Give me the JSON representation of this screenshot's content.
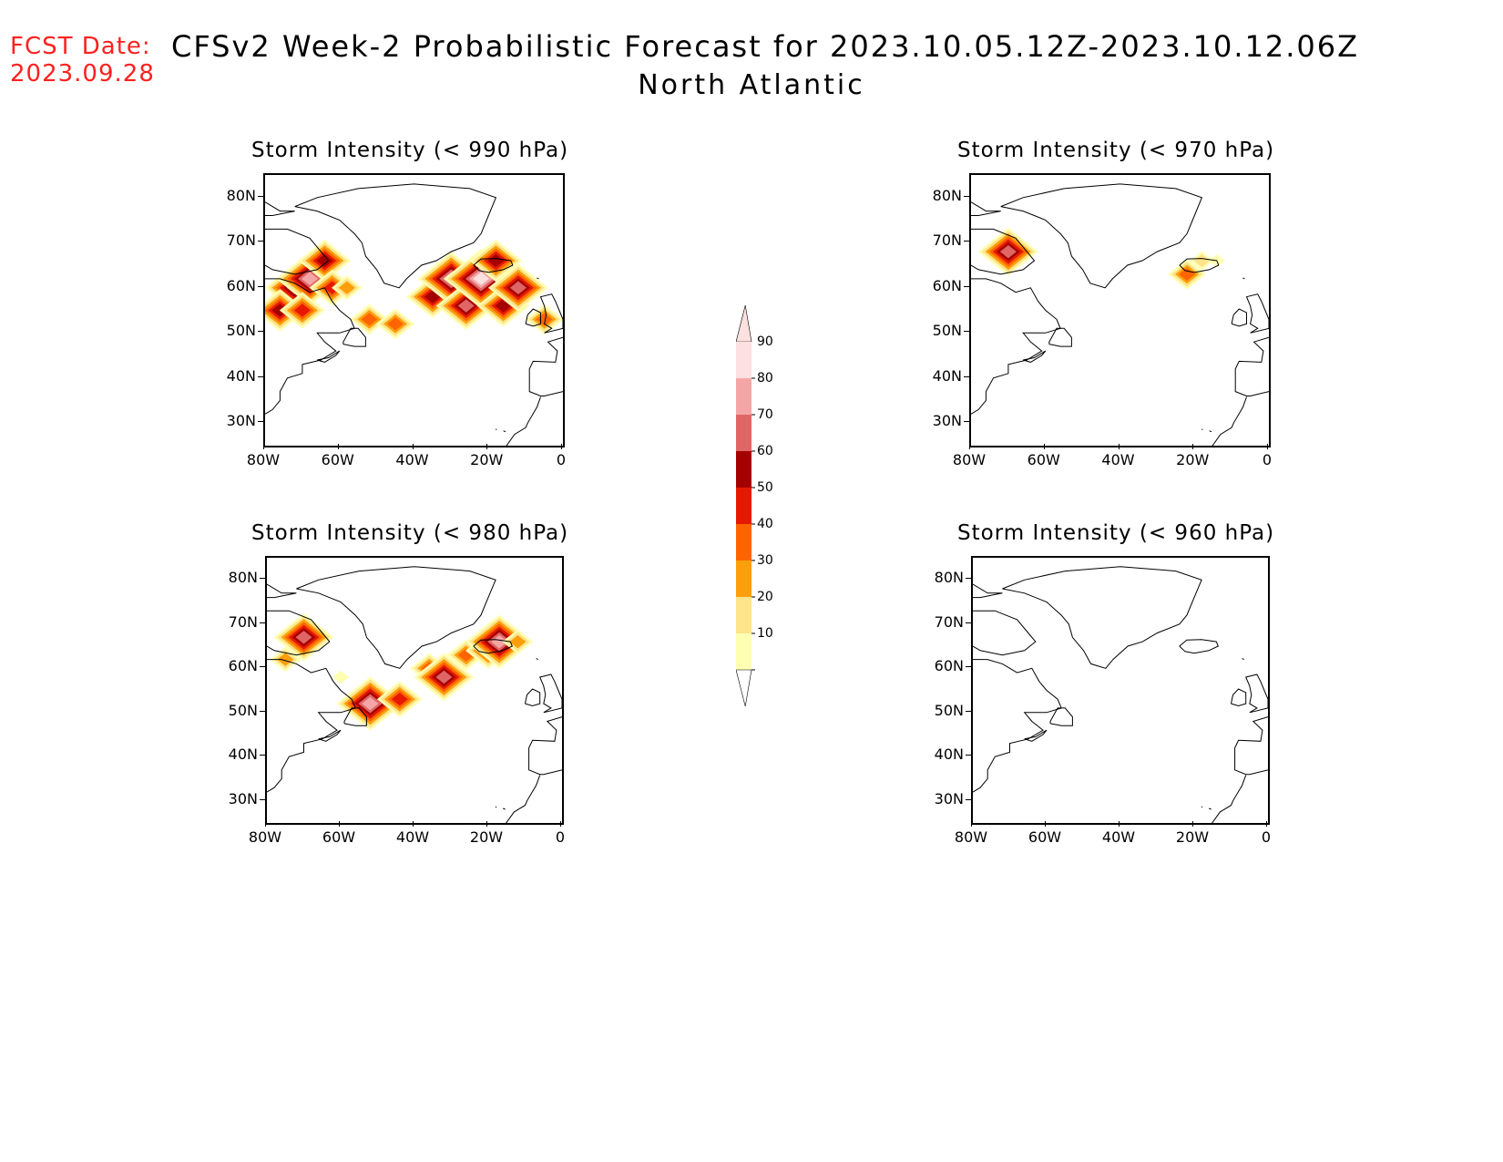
{
  "header": {
    "fcst_label": "FCST Date:",
    "fcst_date": "2023.09.28",
    "title": "CFSv2 Week-2 Probabilistic Forecast for 2023.10.05.12Z-2023.10.12.06Z",
    "subtitle": "North Atlantic"
  },
  "axes": {
    "lat_labels": [
      "80N",
      "70N",
      "60N",
      "50N",
      "40N",
      "30N"
    ],
    "lat_values": [
      80,
      70,
      60,
      50,
      40,
      30
    ],
    "lon_labels": [
      "80W",
      "60W",
      "40W",
      "20W",
      "0"
    ],
    "lon_values": [
      -80,
      -60,
      -40,
      -20,
      0
    ],
    "lat_range": [
      25,
      85
    ],
    "lon_range": [
      -80,
      0
    ]
  },
  "colorbar": {
    "levels": [
      10,
      20,
      30,
      40,
      50,
      60,
      70,
      80,
      90
    ],
    "labels": [
      "90",
      "80",
      "70",
      "60",
      "50",
      "40",
      "30",
      "20",
      "10"
    ],
    "colors": [
      "#ffffb2",
      "#fde38a",
      "#fd9f0a",
      "#ff6400",
      "#e61900",
      "#a50000",
      "#e06666",
      "#f4a6a6",
      "#fde0e0"
    ]
  },
  "panels": [
    {
      "title": "Storm Intensity (< 990 hPa)",
      "id": "p990",
      "blobs": [
        {
          "lon": -72,
          "lat": 60,
          "prob": 70
        },
        {
          "lon": -68,
          "lat": 62,
          "prob": 85
        },
        {
          "lon": -64,
          "lat": 66,
          "prob": 60
        },
        {
          "lon": -62,
          "lat": 60,
          "prob": 55
        },
        {
          "lon": -76,
          "lat": 55,
          "prob": 60
        },
        {
          "lon": -70,
          "lat": 55,
          "prob": 50
        },
        {
          "lon": -58,
          "lat": 60,
          "prob": 35
        },
        {
          "lon": -52,
          "lat": 53,
          "prob": 40
        },
        {
          "lon": -45,
          "lat": 52,
          "prob": 40
        },
        {
          "lon": -35,
          "lat": 58,
          "prob": 60
        },
        {
          "lon": -30,
          "lat": 62,
          "prob": 85
        },
        {
          "lon": -26,
          "lat": 56,
          "prob": 70
        },
        {
          "lon": -22,
          "lat": 62,
          "prob": 90
        },
        {
          "lon": -18,
          "lat": 66,
          "prob": 65
        },
        {
          "lon": -16,
          "lat": 56,
          "prob": 60
        },
        {
          "lon": -12,
          "lat": 60,
          "prob": 75
        },
        {
          "lon": -5,
          "lat": 53,
          "prob": 45
        }
      ]
    },
    {
      "title": "Storm Intensity (< 970 hPa)",
      "id": "p970",
      "blobs": [
        {
          "lon": -70,
          "lat": 68,
          "prob": 75
        },
        {
          "lon": -22,
          "lat": 63,
          "prob": 45
        },
        {
          "lon": -18,
          "lat": 66,
          "prob": 20
        },
        {
          "lon": -14,
          "lat": 66,
          "prob": 15
        }
      ]
    },
    {
      "title": "Storm Intensity (< 980 hPa)",
      "id": "p980",
      "blobs": [
        {
          "lon": -70,
          "lat": 67,
          "prob": 70
        },
        {
          "lon": -75,
          "lat": 62,
          "prob": 30
        },
        {
          "lon": -60,
          "lat": 58,
          "prob": 15
        },
        {
          "lon": -52,
          "lat": 52,
          "prob": 80
        },
        {
          "lon": -44,
          "lat": 53,
          "prob": 55
        },
        {
          "lon": -36,
          "lat": 60,
          "prob": 40
        },
        {
          "lon": -32,
          "lat": 58,
          "prob": 75
        },
        {
          "lon": -26,
          "lat": 63,
          "prob": 45
        },
        {
          "lon": -20,
          "lat": 64,
          "prob": 55
        },
        {
          "lon": -17,
          "lat": 66,
          "prob": 85
        },
        {
          "lon": -12,
          "lat": 66,
          "prob": 35
        }
      ]
    },
    {
      "title": "Storm Intensity (< 960 hPa)",
      "id": "p960",
      "blobs": []
    }
  ]
}
